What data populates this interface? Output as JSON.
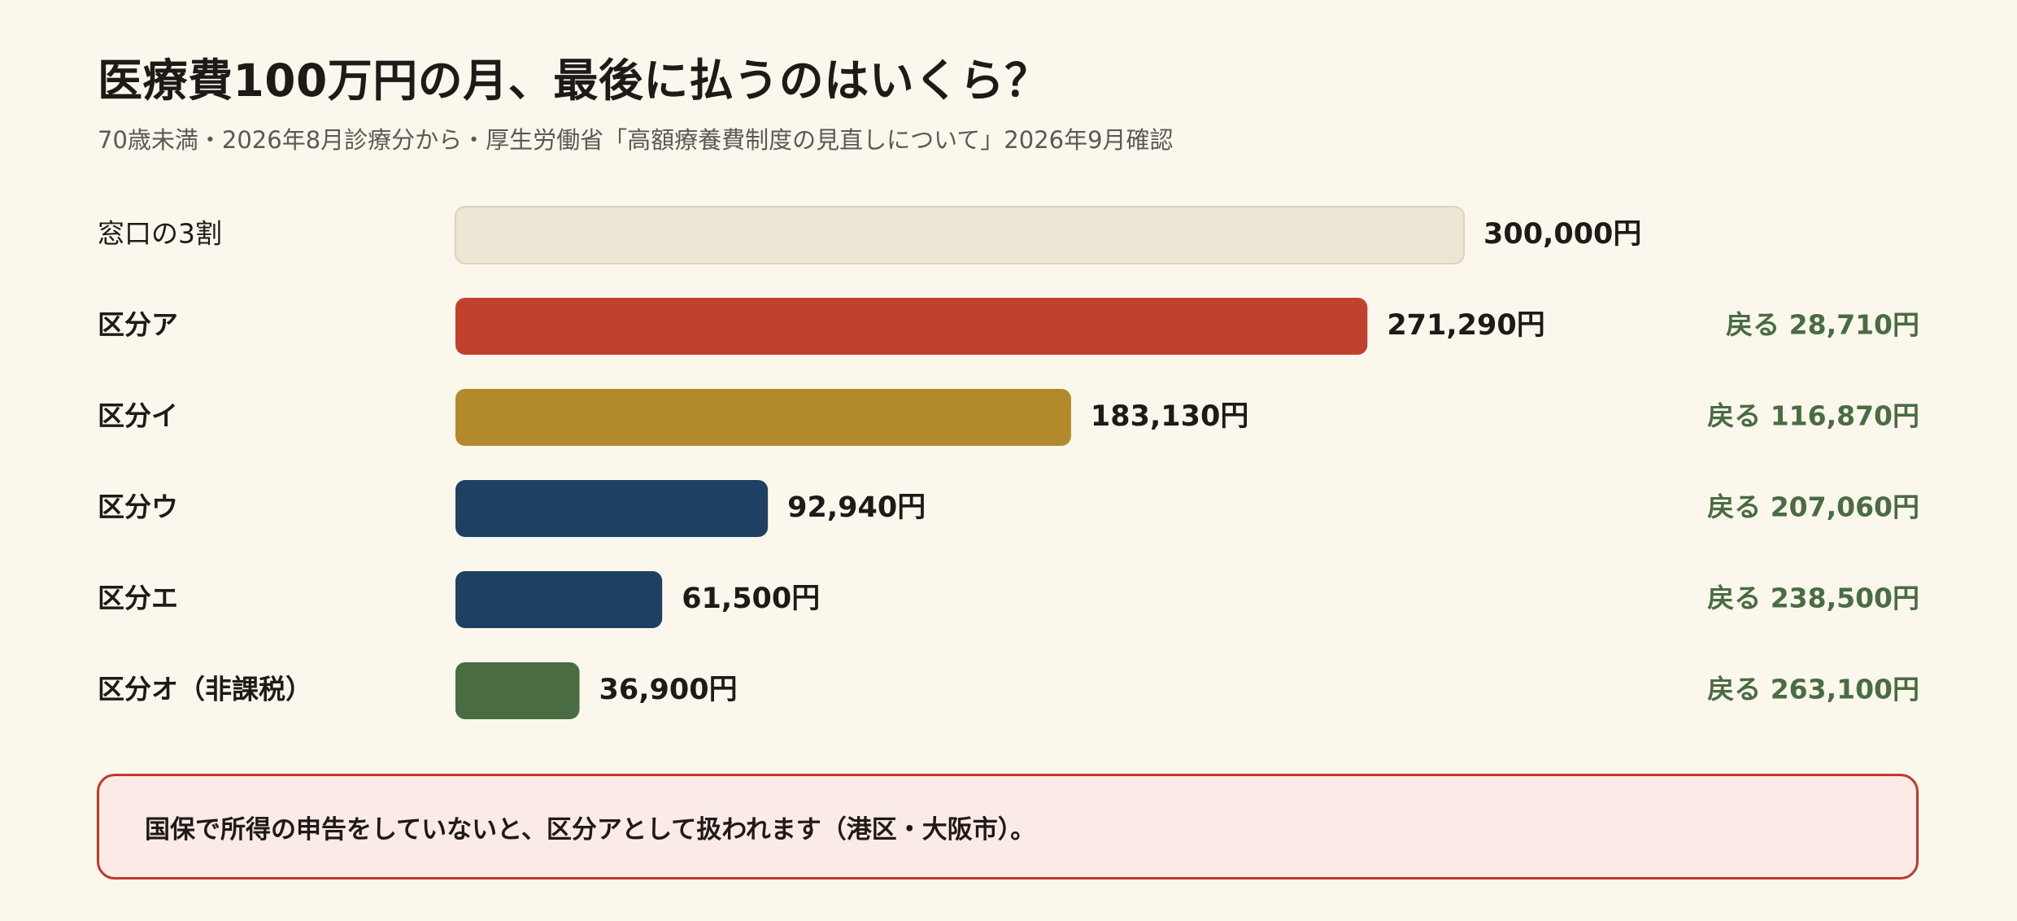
{
  "title": "医療費100万円の月、最後に払うのはいくら？",
  "subtitle": "70歳未満・2026年8月診療分から・厚生労働省「高額療養費制度の見直しについて」2026年9月確認",
  "callout": "国保で所得の申告をしていないと、区分アとして扱われます（港区・大阪市）。",
  "chart_data": {
    "type": "bar",
    "orientation": "horizontal",
    "xlim": [
      0,
      300000
    ],
    "grid": false,
    "legend": "none",
    "bars": [
      {
        "label": "窓口の3割",
        "value": 300000,
        "value_label": "300,000円",
        "refund_label": "",
        "color": "#ede6d4",
        "stroke": "#ddd3bc",
        "bold_label": false
      },
      {
        "label": "区分ア",
        "value": 271290,
        "value_label": "271,290円",
        "refund_label": "戻る 28,710円",
        "color": "#c1402e",
        "stroke": "",
        "bold_label": true
      },
      {
        "label": "区分イ",
        "value": 183130,
        "value_label": "183,130円",
        "refund_label": "戻る 116,870円",
        "color": "#b38a2b",
        "stroke": "",
        "bold_label": true
      },
      {
        "label": "区分ウ",
        "value": 92940,
        "value_label": "92,940円",
        "refund_label": "戻る 207,060円",
        "color": "#1e4063",
        "stroke": "",
        "bold_label": true
      },
      {
        "label": "区分エ",
        "value": 61500,
        "value_label": "61,500円",
        "refund_label": "戻る 238,500円",
        "color": "#1e4063",
        "stroke": "",
        "bold_label": true
      },
      {
        "label": "区分オ（非課税）",
        "value": 36900,
        "value_label": "36,900円",
        "refund_label": "戻る 263,100円",
        "color": "#4a6c42",
        "stroke": "",
        "bold_label": true
      }
    ],
    "refund_color": "#4a6c42"
  }
}
